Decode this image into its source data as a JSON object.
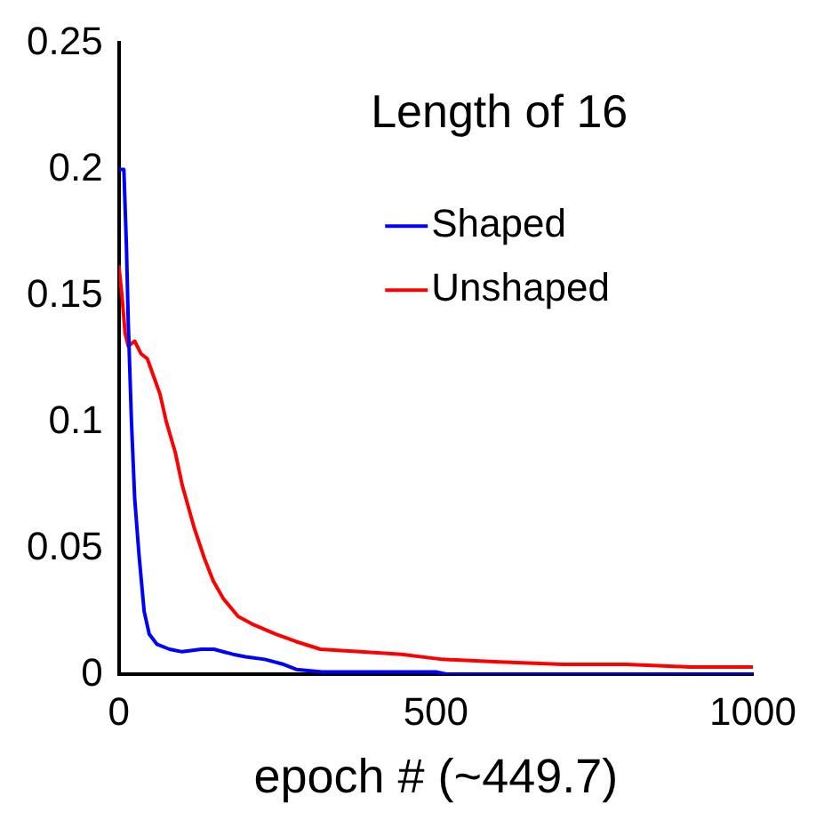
{
  "chart_data": {
    "type": "line",
    "title": "Length of 16",
    "xlabel": "epoch # (~449.7)",
    "xlim": [
      0,
      1000
    ],
    "xticks": [
      0,
      500,
      1000
    ],
    "ylim": [
      0,
      0.25
    ],
    "yticks": [
      0,
      0.05,
      0.1,
      0.15,
      0.2,
      0.25
    ],
    "grid": false,
    "legend": "right",
    "marker": "none",
    "line_style": "solid",
    "series": [
      {
        "name": "Shaped",
        "color": "#0000ff",
        "x": [
          0,
          3,
          8,
          12,
          15,
          20,
          25,
          32,
          40,
          48,
          60,
          80,
          100,
          130,
          150,
          180,
          200,
          230,
          260,
          280,
          320,
          400,
          500,
          520,
          600,
          800,
          1000
        ],
        "values": [
          0.2,
          0.2,
          0.2,
          0.17,
          0.139,
          0.1,
          0.07,
          0.047,
          0.025,
          0.016,
          0.012,
          0.01,
          0.009,
          0.01,
          0.01,
          0.008,
          0.007,
          0.006,
          0.004,
          0.002,
          0.001,
          0.001,
          0.001,
          0,
          0,
          0,
          0
        ]
      },
      {
        "name": "Unshaped",
        "color": "#ff0000",
        "x": [
          0,
          5,
          10,
          15,
          25,
          35,
          45,
          55,
          65,
          75,
          89,
          100,
          119,
          135,
          149,
          165,
          188,
          210,
          247,
          280,
          318,
          380,
          446,
          510,
          600,
          700,
          800,
          900,
          1000
        ],
        "values": [
          0.162,
          0.15,
          0.135,
          0.13,
          0.132,
          0.127,
          0.125,
          0.118,
          0.111,
          0.1,
          0.088,
          0.075,
          0.058,
          0.046,
          0.037,
          0.03,
          0.023,
          0.02,
          0.016,
          0.013,
          0.01,
          0.009,
          0.008,
          0.006,
          0.005,
          0.004,
          0.004,
          0.003,
          0.003
        ]
      }
    ]
  }
}
